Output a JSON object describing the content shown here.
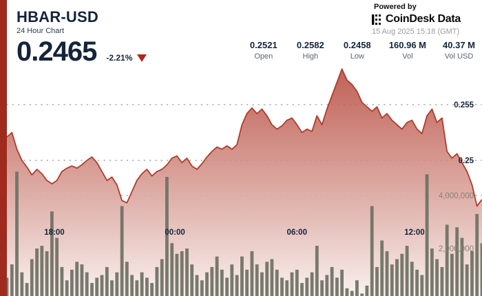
{
  "header": {
    "symbol": "HBAR-USD",
    "subtitle": "24 Hour Chart",
    "price": "0.2465",
    "change": "-2.21%",
    "direction": "down"
  },
  "branding": {
    "powered_by": "Powered by",
    "logo_text": "CoinDesk Data",
    "timestamp": "15 Aug 2025 15:18 (GMT)"
  },
  "stats": {
    "items": [
      {
        "value": "0.2521",
        "label": "Open"
      },
      {
        "value": "0.2582",
        "label": "High"
      },
      {
        "value": "0.2458",
        "label": "Low"
      },
      {
        "value": "160.96 M",
        "label": "Vol"
      },
      {
        "value": "40.37 M",
        "label": "Vol USD"
      }
    ]
  },
  "chart_data": {
    "type": "area",
    "title": "HBAR-USD 24 Hour Chart",
    "xlabel": "",
    "ylabel": "",
    "grid": "dotted-horizontal",
    "x_ticks": [
      {
        "label": "18:00",
        "index": 9.5
      },
      {
        "label": "00:00",
        "index": 33.6
      },
      {
        "label": "06:00",
        "index": 58.0
      },
      {
        "label": "12:00",
        "index": 81.5
      }
    ],
    "price_ticks": [
      {
        "label": "0.255",
        "value": 0.255
      },
      {
        "label": "0.25",
        "value": 0.25
      }
    ],
    "volume_ticks": [
      {
        "label": "4,000,000",
        "millions": 4
      },
      {
        "label": "2,000,000",
        "millions": 2
      }
    ],
    "price_range_visible": [
      0.2458,
      0.2582
    ],
    "series": [
      {
        "name": "price",
        "values": [
          0.2521,
          0.2525,
          0.251,
          0.25,
          0.2494,
          0.2487,
          0.2492,
          0.2488,
          0.2482,
          0.2479,
          0.2482,
          0.249,
          0.2493,
          0.2495,
          0.2493,
          0.2496,
          0.25,
          0.2503,
          0.2498,
          0.249,
          0.2482,
          0.2485,
          0.2478,
          0.2464,
          0.2462,
          0.2472,
          0.2482,
          0.2488,
          0.2492,
          0.2486,
          0.249,
          0.2492,
          0.2496,
          0.2502,
          0.2504,
          0.2498,
          0.2502,
          0.2495,
          0.2492,
          0.2497,
          0.2503,
          0.2508,
          0.2512,
          0.251,
          0.2513,
          0.251,
          0.2514,
          0.2532,
          0.2542,
          0.2547,
          0.2542,
          0.2546,
          0.254,
          0.2532,
          0.2528,
          0.2531,
          0.2536,
          0.2538,
          0.2532,
          0.2525,
          0.2528,
          0.2526,
          0.254,
          0.2532,
          0.2546,
          0.2558,
          0.257,
          0.2582,
          0.2572,
          0.2568,
          0.2562,
          0.2552,
          0.2548,
          0.2544,
          0.2548,
          0.2538,
          0.2542,
          0.2536,
          0.2532,
          0.2528,
          0.2534,
          0.2536,
          0.2528,
          0.2524,
          0.254,
          0.2546,
          0.2534,
          0.2538,
          0.2508,
          0.2502,
          0.2506,
          0.2498,
          0.249,
          0.2478,
          0.2459,
          0.2465
        ]
      },
      {
        "name": "volume_millions",
        "values": [
          0.9,
          1.4,
          4.9,
          1.1,
          0.7,
          1.6,
          2.0,
          2.1,
          1.9,
          3.4,
          2.4,
          1.3,
          0.8,
          1.2,
          1.5,
          1.4,
          1.1,
          0.7,
          0.9,
          1.0,
          1.3,
          0.8,
          1.1,
          3.6,
          1.5,
          1.0,
          0.8,
          1.1,
          0.9,
          0.7,
          1.3,
          1.6,
          4.7,
          2.2,
          1.8,
          1.9,
          2.0,
          1.4,
          1.0,
          0.8,
          1.1,
          1.3,
          1.7,
          1.2,
          0.9,
          1.4,
          1.0,
          1.7,
          1.2,
          1.9,
          1.4,
          1.1,
          1.5,
          1.6,
          1.2,
          0.9,
          0.8,
          1.1,
          1.2,
          0.7,
          0.9,
          1.1,
          2.1,
          0.8,
          1.0,
          1.3,
          0.9,
          1.2,
          0.5,
          0.4,
          0.8,
          0.3,
          0.6,
          3.6,
          1.3,
          2.3,
          1.9,
          1.4,
          1.6,
          1.8,
          2.1,
          1.5,
          1.2,
          1.0,
          4.8,
          2.0,
          1.6,
          1.3,
          2.9,
          1.8,
          2.8,
          2.4,
          1.4,
          1.9,
          3.3,
          2.2
        ]
      }
    ],
    "colors": {
      "line": "#b23a28",
      "fill_top": "#b5473a",
      "fill_bottom": "#f9f1ef",
      "volume_bar": "#6e7164",
      "accent": "#9f2a1e",
      "navy": "#15243a",
      "grid_dot": "#9a9a9a",
      "price_tick_text": "#15243a",
      "volume_tick_text": "#8a8178",
      "time_label_text": "#15243a"
    }
  }
}
